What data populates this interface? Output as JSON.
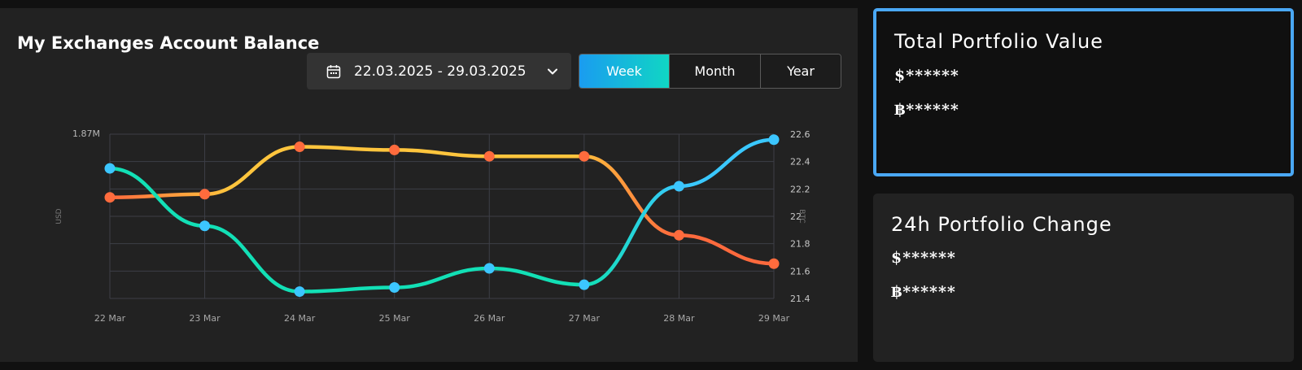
{
  "balance_card": {
    "title": "My Exchanges Account Balance",
    "date_range": "22.03.2025 - 29.03.2025",
    "ranges": [
      "Week",
      "Month",
      "Year"
    ],
    "active_range": "Week"
  },
  "portfolio": {
    "total": {
      "title": "Total Portfolio Value",
      "usd": "$******",
      "btc": "฿******"
    },
    "change": {
      "title": "24h Portfolio Change",
      "usd": "$******",
      "btc": "฿******"
    }
  },
  "colors": {
    "usd_line_start": "#ffc53d",
    "usd_line_end": "#ff6a3d",
    "btc_line_start": "#12e0b6",
    "btc_line_end": "#3ac8ff",
    "usd_marker": "#ff6b3d",
    "btc_marker": "#3cc6ff",
    "active_border": "#4aa8f5"
  },
  "chart_data": {
    "type": "line",
    "categories": [
      "22 Mar",
      "23 Mar",
      "24 Mar",
      "25 Mar",
      "26 Mar",
      "27 Mar",
      "28 Mar",
      "29 Mar"
    ],
    "series": [
      {
        "axis": "left",
        "values": [
          1.67,
          1.68,
          1.83,
          1.82,
          1.8,
          1.8,
          1.55,
          1.46
        ]
      },
      {
        "axis": "right",
        "values": [
          22.35,
          21.93,
          21.45,
          21.48,
          21.62,
          21.5,
          22.22,
          22.56
        ]
      }
    ],
    "left_axis": {
      "label": "USD",
      "top_tick": "1.87M",
      "ylim": [
        1.35,
        1.87
      ]
    },
    "right_axis": {
      "label": "BTC",
      "ticks": [
        "22.6",
        "22.4",
        "22.2",
        "22",
        "21.8",
        "21.6",
        "21.4"
      ],
      "ylim": [
        21.4,
        22.6
      ]
    },
    "grid": true,
    "legend": "none"
  }
}
